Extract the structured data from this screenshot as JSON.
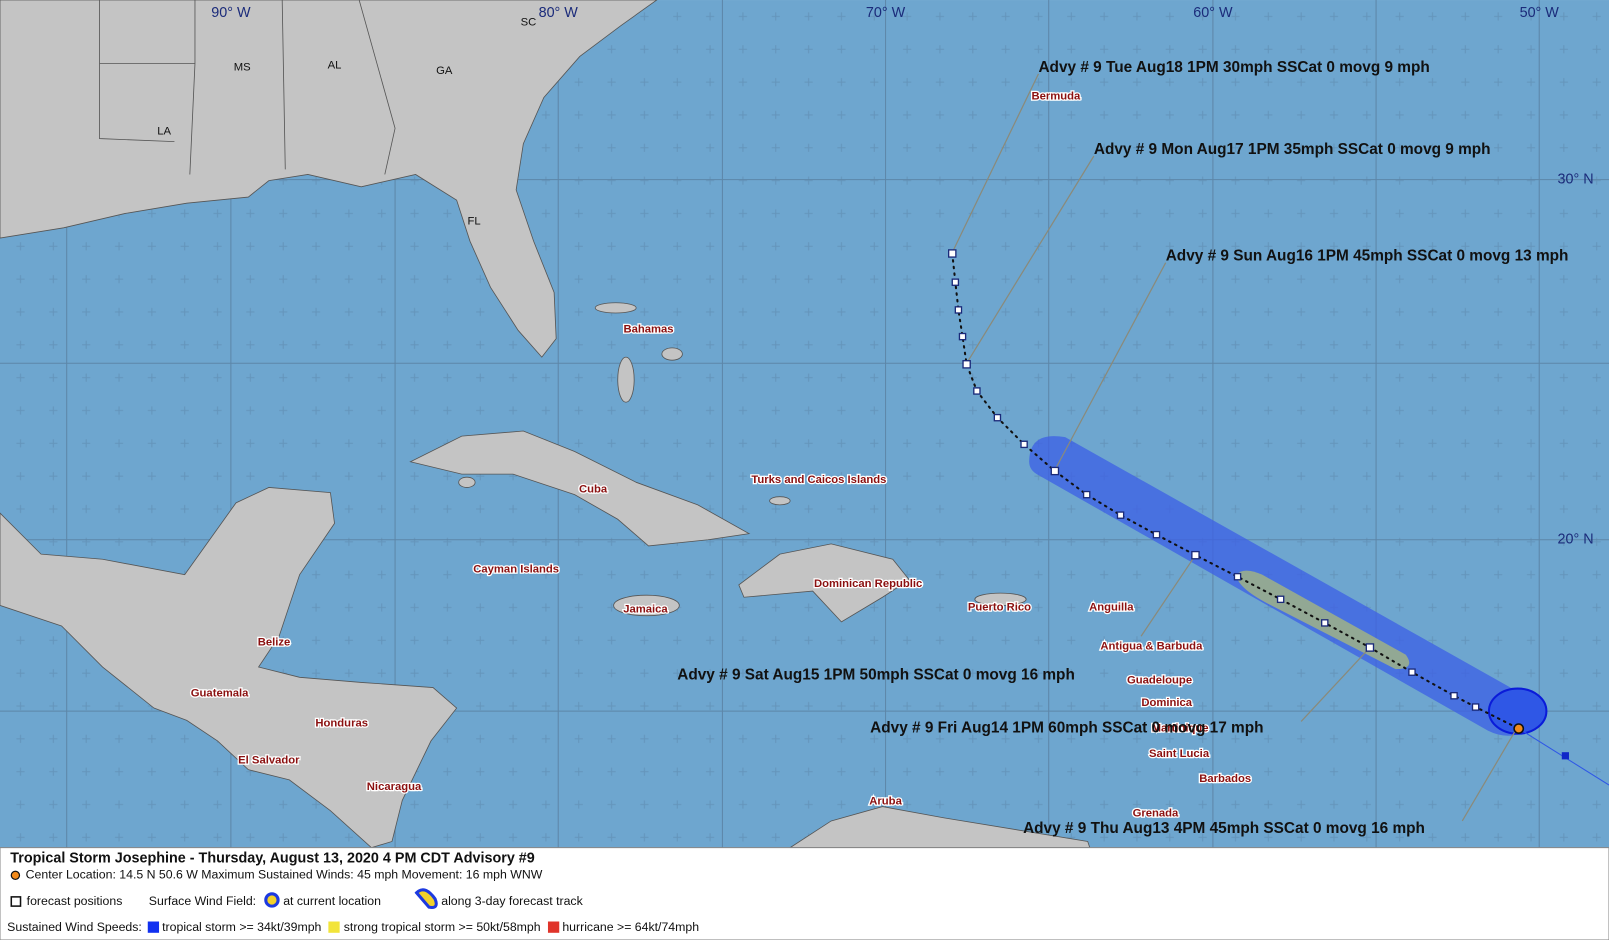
{
  "map": {
    "longitude_labels": [
      "90° W",
      "80° W",
      "70° W",
      "60° W",
      "50° W"
    ],
    "latitude_labels": [
      "30° N",
      "20° N"
    ],
    "state_labels": [
      "SC",
      "MS",
      "AL",
      "GA",
      "LA",
      "FL"
    ],
    "place_labels": [
      "Bermuda",
      "Bahamas",
      "Cuba",
      "Turks and Caicos Islands",
      "Cayman Islands",
      "Jamaica",
      "Dominican Republic",
      "Puerto Rico",
      "Anguilla",
      "Antigua & Barbuda",
      "Guadeloupe",
      "Dominica",
      "Martinique",
      "Saint Lucia",
      "Barbados",
      "Grenada",
      "Aruba",
      "Belize",
      "Guatemala",
      "Honduras",
      "El Salvador",
      "Nicaragua"
    ],
    "advisories": [
      "Advy # 9 Tue Aug18 1PM  30mph SSCat 0 movg 9 mph",
      "Advy # 9 Mon Aug17 1PM  35mph SSCat 0 movg 9 mph",
      "Advy # 9 Sun Aug16 1PM  45mph SSCat 0 movg 13 mph",
      "Advy # 9 Sat Aug15 1PM  50mph SSCat 0 movg 16 mph",
      "Advy # 9 Fri Aug14 1PM  60mph SSCat 0 movg 17 mph",
      "Advy # 9 Thu Aug13 4PM  45mph SSCat 0 movg 16 mph"
    ]
  },
  "legend": {
    "title": "Tropical Storm Josephine  -  Thursday, August 13, 2020  4 PM CDT   Advisory #9",
    "center_line": "Center Location: 14.5 N  50.6 W   Maximum Sustained Winds: 45 mph   Movement: 16 mph WNW",
    "forecast_positions": "forecast positions",
    "surface_wind_field": "Surface Wind Field:",
    "at_current_location": "at current location",
    "along_track": "along 3-day forecast track",
    "sustained_wind_speeds": "Sustained Wind Speeds:",
    "tropical_storm": "tropical storm >= 34kt/39mph",
    "strong_tropical_storm": "strong tropical storm >= 50kt/58mph",
    "hurricane": "hurricane >= 64kt/74mph"
  }
}
